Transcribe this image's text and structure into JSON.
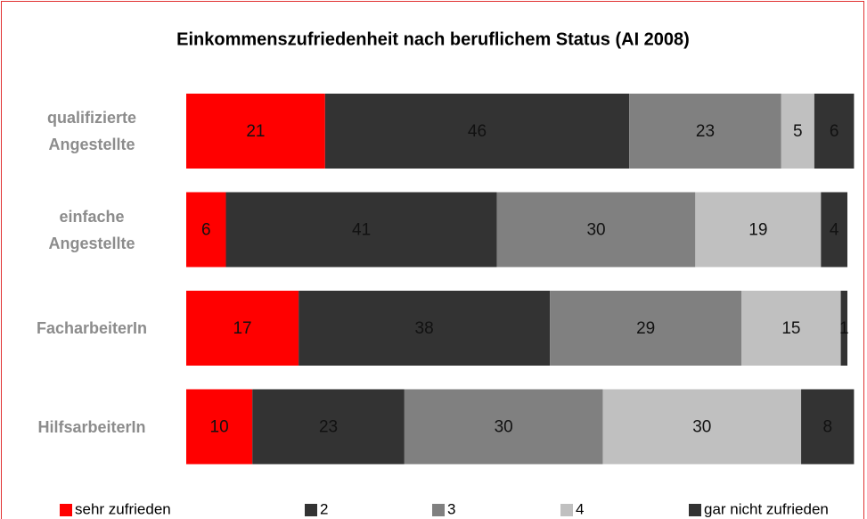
{
  "chart_data": {
    "type": "stacked-bar-horizontal",
    "title": "Einkommenszufriedenheit nach beruflichem Status (AI 2008)",
    "categories": [
      "qualifizierte Angestellte",
      "einfache Angestellte",
      "FacharbeiterIn",
      "HilfsarbeiterIn"
    ],
    "series": [
      {
        "name": "sehr zufrieden",
        "color": "#ff0000",
        "values": [
          21,
          6,
          17,
          10
        ]
      },
      {
        "name": "2",
        "color": "#333333",
        "values": [
          46,
          41,
          38,
          23
        ]
      },
      {
        "name": "3",
        "color": "#808080",
        "values": [
          23,
          30,
          29,
          30
        ]
      },
      {
        "name": "4",
        "color": "#c0c0c0",
        "values": [
          5,
          19,
          15,
          30
        ]
      },
      {
        "name": "gar nicht zufrieden",
        "color": "#333333",
        "values": [
          6,
          4,
          1,
          8
        ]
      }
    ],
    "xlim": [
      0,
      100
    ]
  }
}
